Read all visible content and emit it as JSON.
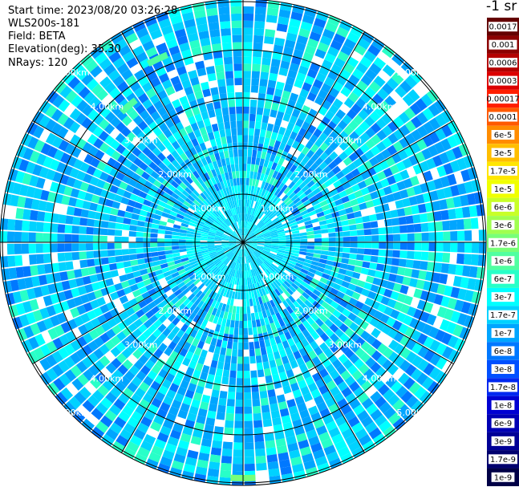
{
  "header": {
    "start_time": "Start time: 2023/08/20 03:26:28",
    "instrument": "WLS200s-181",
    "field": "Field: BETA",
    "elevation": "Elevation(deg): 35.30",
    "nrays": "NRays: 120"
  },
  "colorbar": {
    "title": "-1 sr",
    "labels": [
      "0.0017",
      "0.001",
      "0.0006",
      "0.0003",
      "0.00017",
      "0.0001",
      "6e-5",
      "3e-5",
      "1.7e-5",
      "1e-5",
      "6e-6",
      "3e-6",
      "1.7e-6",
      "1e-6",
      "6e-7",
      "3e-7",
      "1.7e-7",
      "1e-7",
      "6e-8",
      "3e-8",
      "1.7e-8",
      "1e-8",
      "6e-9",
      "3e-9",
      "1.7e-9",
      "1e-9"
    ],
    "colors": [
      "#640000",
      "#8c0000",
      "#b40000",
      "#dc0000",
      "#ff1e00",
      "#ff5a00",
      "#ff8c00",
      "#ffbe00",
      "#ffe600",
      "#f0ff00",
      "#c8ff28",
      "#a0ff50",
      "#78ff78",
      "#50ffa0",
      "#28ffc8",
      "#00ffff",
      "#00d2ff",
      "#00a5ff",
      "#0078ff",
      "#0050ff",
      "#0028f0",
      "#0000d2",
      "#0000b4",
      "#000096",
      "#00006e",
      "#000046"
    ]
  },
  "chart_data": {
    "type": "polar_ppi",
    "field": "BETA",
    "unit": "-1 sr",
    "elevation_deg": 35.3,
    "n_rays": 120,
    "range_unit": "km",
    "range_rings_km": [
      1,
      2,
      3,
      4,
      5
    ],
    "ring_labels": [
      "1.00km",
      "2.00km",
      "3.00km",
      "4.00km",
      "5.00km"
    ],
    "max_range_km": 5.05,
    "spokes_deg": [
      0,
      30,
      60,
      90,
      120,
      150,
      180,
      210,
      240,
      270,
      300,
      330
    ],
    "dominant_range": [
      "1e-7",
      "1.7e-7"
    ],
    "features": [
      {
        "range_km": 4.9,
        "azimuth_deg": 180,
        "level": "1.7e-6"
      },
      {
        "range_km": 4.2,
        "azimuth_deg": 335,
        "level": "1e-6"
      },
      {
        "range_km": 3.7,
        "azimuth_deg": 320,
        "level": "1e-6"
      }
    ]
  }
}
